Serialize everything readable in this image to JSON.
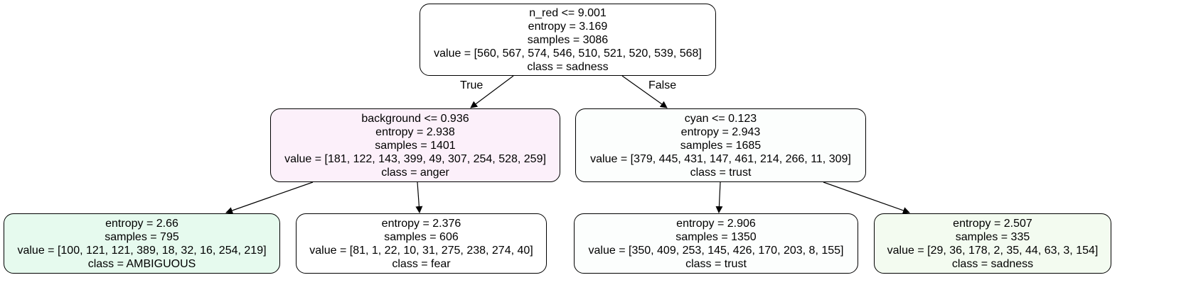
{
  "colors": {
    "edge": "#000000",
    "anger": "#fcf0fa",
    "trust": "#fcfefd",
    "ambiguous": "#e6faee",
    "fear": "#ffffff",
    "sadness": "#f3fbf0",
    "root": "#ffffff"
  },
  "nodes": [
    {
      "id": "n0",
      "lines": [
        "n_red <= 9.001",
        "entropy = 3.169",
        "samples = 3086",
        "value = [560, 567, 574, 546, 510, 521, 520, 539, 568]",
        "class = sadness"
      ],
      "fill": "#ffffff"
    },
    {
      "id": "n1",
      "lines": [
        "background <= 0.936",
        "entropy = 2.938",
        "samples = 1401",
        "value = [181, 122, 143, 399, 49, 307, 254, 528, 259]",
        "class = anger"
      ],
      "fill": "#fcf0fa"
    },
    {
      "id": "n2",
      "lines": [
        "cyan <= 0.123",
        "entropy = 2.943",
        "samples = 1685",
        "value = [379, 445, 431, 147, 461, 214, 266, 11, 309]",
        "class = trust"
      ],
      "fill": "#fcfefd"
    },
    {
      "id": "n3",
      "lines": [
        "entropy = 2.66",
        "samples = 795",
        "value = [100, 121, 121, 389, 18, 32, 16, 254, 219]",
        "class = AMBIGUOUS"
      ],
      "fill": "#e6faee"
    },
    {
      "id": "n4",
      "lines": [
        "entropy = 2.376",
        "samples = 606",
        "value = [81, 1, 22, 10, 31, 275, 238, 274, 40]",
        "class = fear"
      ],
      "fill": "#ffffff"
    },
    {
      "id": "n5",
      "lines": [
        "entropy = 2.906",
        "samples = 1350",
        "value = [350, 409, 253, 145, 426, 170, 203, 8, 155]",
        "class = trust"
      ],
      "fill": "#fcfefd"
    },
    {
      "id": "n6",
      "lines": [
        "entropy = 2.507",
        "samples = 335",
        "value = [29, 36, 178, 2, 35, 44, 63, 3, 154]",
        "class = sadness"
      ],
      "fill": "#f3fbf0"
    }
  ],
  "edges": [
    {
      "from": "n0",
      "to": "n1",
      "label": "True"
    },
    {
      "from": "n0",
      "to": "n2",
      "label": "False"
    },
    {
      "from": "n1",
      "to": "n3",
      "label": ""
    },
    {
      "from": "n1",
      "to": "n4",
      "label": ""
    },
    {
      "from": "n2",
      "to": "n5",
      "label": ""
    },
    {
      "from": "n2",
      "to": "n6",
      "label": ""
    }
  ]
}
